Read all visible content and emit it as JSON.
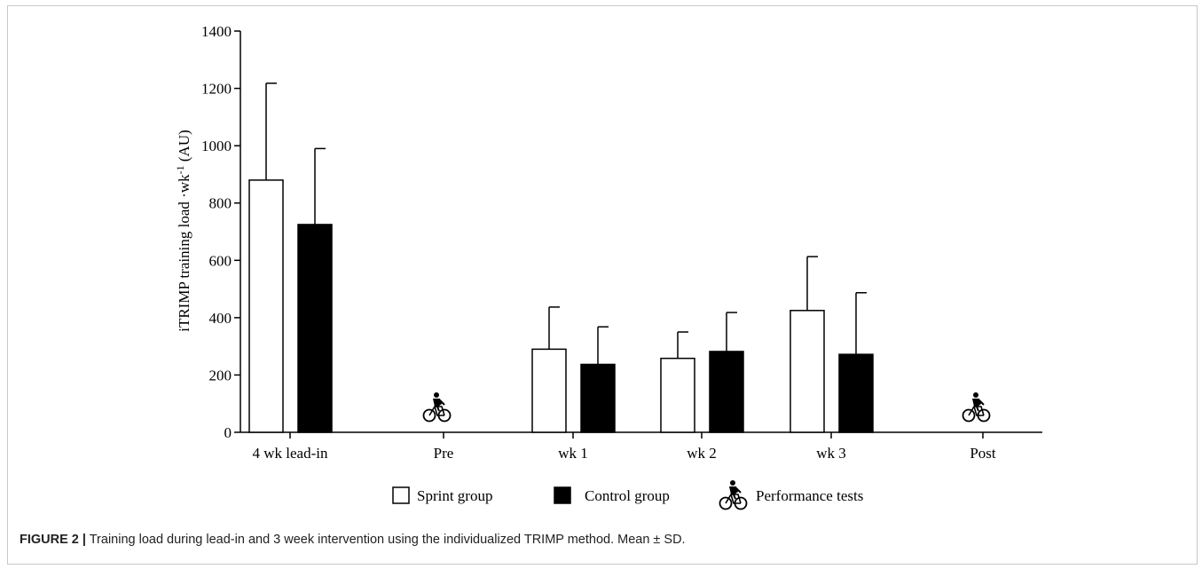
{
  "chart_data": {
    "type": "bar",
    "ylabel_main": "iTRIMP training load ·wk",
    "ylabel_sup": "-1",
    "ylabel_unit": " (AU)",
    "ylim": [
      0,
      1400
    ],
    "yticks": [
      0,
      200,
      400,
      600,
      800,
      1000,
      1200,
      1400
    ],
    "categories": [
      "4 wk lead-in",
      "Pre",
      "wk 1",
      "wk 2",
      "wk 3",
      "Post"
    ],
    "series": [
      {
        "name": "Sprint group",
        "color": "#ffffff",
        "values": [
          880,
          null,
          290,
          258,
          425,
          null
        ],
        "sd": [
          338,
          null,
          147,
          92,
          188,
          null
        ]
      },
      {
        "name": "Control group",
        "color": "#000000",
        "values": [
          725,
          null,
          237,
          282,
          272,
          null
        ],
        "sd": [
          265,
          null,
          131,
          136,
          215,
          null
        ]
      }
    ],
    "performance_test_categories": [
      "Pre",
      "Post"
    ],
    "legend": [
      "Sprint group",
      "Control group",
      "Performance tests"
    ],
    "legend_position": "bottom",
    "grid": false
  },
  "caption": {
    "label": "FIGURE 2 |",
    "text": " Training load during lead-in and 3 week intervention using the individualized TRIMP method. Mean ± SD."
  },
  "icons": {
    "performance": "cyclist-icon"
  }
}
